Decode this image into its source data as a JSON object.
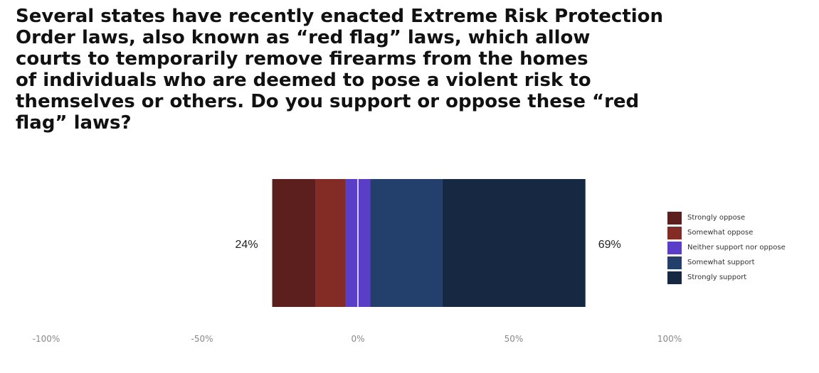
{
  "title_lines": [
    "Several states have recently enacted Extreme Risk Protection",
    "Order laws, also known as “red flag” laws, which allow",
    "courts to temporarily remove firearms from the homes",
    "of individuals who are deemed to pose a violent risk to",
    "themselves or others. Do you support or oppose these “red",
    "flag” laws?"
  ],
  "chart_data": {
    "type": "bar",
    "orientation": "horizontal-diverging-stacked",
    "title": "Several states have recently enacted Extreme Risk Protection Order laws, also known as “red flag” laws, which allow courts to temporarily remove firearms from the homes of individuals who are deemed to pose a violent risk to themselves or others. Do you support or oppose these “red flag” laws?",
    "xlabel": "",
    "ylabel": "",
    "xlim": [
      -100,
      100
    ],
    "x_ticks": [
      -100,
      -50,
      0,
      50,
      100
    ],
    "x_tick_labels": [
      "-100%",
      "-50%",
      "0%",
      "50%",
      "100%"
    ],
    "grid": false,
    "legend_position": "right",
    "series": [
      {
        "name": "Strongly oppose",
        "value": 14,
        "color": "#5c1f1e"
      },
      {
        "name": "Somewhat oppose",
        "value": 9.5,
        "color": "#832b25"
      },
      {
        "name": "Neither support nor oppose",
        "value": 8,
        "color": "#5a3ec8"
      },
      {
        "name": "Somewhat support",
        "value": 23,
        "color": "#22406b"
      },
      {
        "name": "Strongly support",
        "value": 46,
        "color": "#172842"
      }
    ],
    "oppose_total_label": "24%",
    "support_total_label": "69%"
  }
}
